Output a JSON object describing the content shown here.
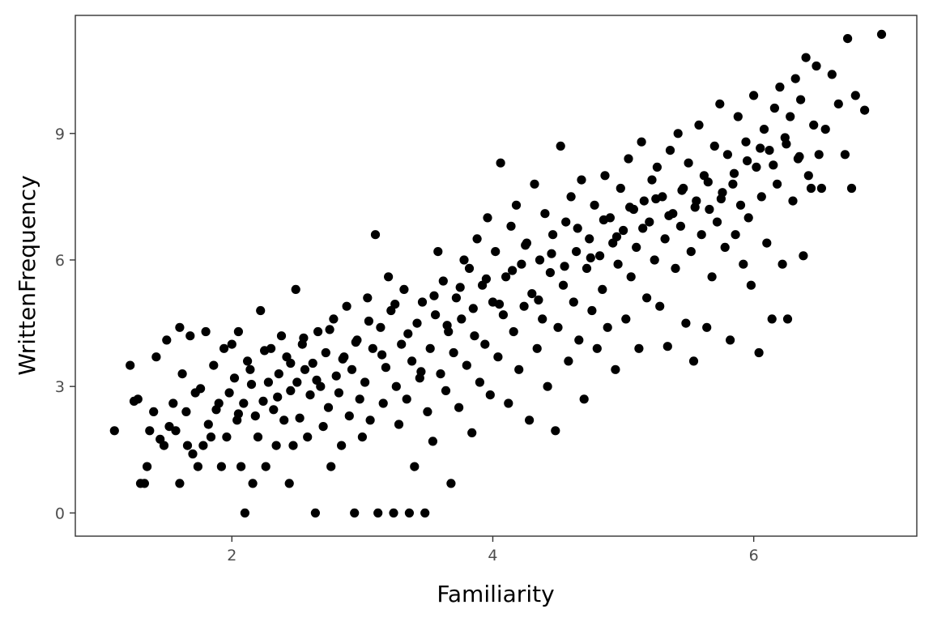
{
  "chart_data": {
    "type": "scatter",
    "title": "",
    "xlabel": "Familiarity",
    "ylabel": "WrittenFrequency",
    "xlim": [
      0.8,
      7.25
    ],
    "ylim": [
      -0.55,
      11.8
    ],
    "x_ticks": [
      2,
      4,
      6
    ],
    "x_tick_labels": [
      "2",
      "4",
      "6"
    ],
    "y_ticks": [
      0,
      3,
      6,
      9
    ],
    "y_tick_labels": [
      "0",
      "3",
      "6",
      "9"
    ],
    "grid": false,
    "legend": "none",
    "point_color": "#000000",
    "points": [
      [
        1.1,
        1.95
      ],
      [
        1.22,
        3.5
      ],
      [
        1.25,
        2.65
      ],
      [
        1.28,
        2.7
      ],
      [
        1.3,
        0.7
      ],
      [
        1.33,
        0.7
      ],
      [
        1.35,
        1.1
      ],
      [
        1.37,
        1.95
      ],
      [
        1.4,
        2.4
      ],
      [
        1.42,
        3.7
      ],
      [
        1.45,
        1.75
      ],
      [
        1.48,
        1.6
      ],
      [
        1.5,
        4.1
      ],
      [
        1.52,
        2.05
      ],
      [
        1.55,
        2.6
      ],
      [
        1.57,
        1.95
      ],
      [
        1.6,
        4.4
      ],
      [
        1.6,
        0.7
      ],
      [
        1.62,
        3.3
      ],
      [
        1.65,
        2.4
      ],
      [
        1.66,
        1.6
      ],
      [
        1.68,
        4.2
      ],
      [
        1.7,
        1.4
      ],
      [
        1.72,
        2.85
      ],
      [
        1.74,
        1.1
      ],
      [
        1.76,
        2.95
      ],
      [
        1.78,
        1.6
      ],
      [
        1.8,
        4.3
      ],
      [
        1.82,
        2.1
      ],
      [
        1.84,
        1.8
      ],
      [
        1.86,
        3.5
      ],
      [
        1.88,
        2.45
      ],
      [
        1.9,
        2.6
      ],
      [
        1.92,
        1.1
      ],
      [
        1.94,
        3.9
      ],
      [
        1.96,
        1.8
      ],
      [
        1.98,
        2.85
      ],
      [
        2.0,
        4.0
      ],
      [
        2.02,
        3.2
      ],
      [
        2.04,
        2.2
      ],
      [
        2.05,
        4.3
      ],
      [
        2.07,
        1.1
      ],
      [
        2.09,
        2.6
      ],
      [
        2.1,
        0.0
      ],
      [
        2.12,
        3.6
      ],
      [
        2.14,
        3.4
      ],
      [
        2.16,
        0.7
      ],
      [
        2.18,
        2.3
      ],
      [
        2.2,
        1.8
      ],
      [
        2.22,
        4.8
      ],
      [
        2.24,
        2.65
      ],
      [
        2.26,
        1.1
      ],
      [
        2.28,
        3.1
      ],
      [
        2.3,
        3.9
      ],
      [
        2.32,
        2.45
      ],
      [
        2.34,
        1.6
      ],
      [
        2.36,
        3.3
      ],
      [
        2.38,
        4.2
      ],
      [
        2.4,
        2.2
      ],
      [
        2.42,
        3.7
      ],
      [
        2.44,
        0.7
      ],
      [
        2.45,
        2.9
      ],
      [
        2.47,
        1.6
      ],
      [
        2.49,
        5.3
      ],
      [
        2.5,
        3.1
      ],
      [
        2.52,
        2.25
      ],
      [
        2.54,
        4.0
      ],
      [
        2.56,
        3.4
      ],
      [
        2.58,
        1.8
      ],
      [
        2.6,
        2.8
      ],
      [
        2.62,
        3.55
      ],
      [
        2.64,
        0.0
      ],
      [
        2.66,
        4.3
      ],
      [
        2.68,
        3.0
      ],
      [
        2.7,
        2.05
      ],
      [
        2.72,
        3.8
      ],
      [
        2.74,
        2.5
      ],
      [
        2.76,
        1.1
      ],
      [
        2.78,
        4.6
      ],
      [
        2.8,
        3.25
      ],
      [
        2.82,
        2.85
      ],
      [
        2.84,
        1.6
      ],
      [
        2.86,
        3.7
      ],
      [
        2.88,
        4.9
      ],
      [
        2.9,
        2.3
      ],
      [
        2.92,
        3.4
      ],
      [
        2.94,
        0.0
      ],
      [
        2.96,
        4.1
      ],
      [
        2.98,
        2.7
      ],
      [
        3.0,
        1.8
      ],
      [
        3.02,
        3.1
      ],
      [
        3.04,
        5.1
      ],
      [
        3.06,
        2.2
      ],
      [
        3.08,
        3.9
      ],
      [
        3.1,
        6.6
      ],
      [
        3.12,
        0.0
      ],
      [
        3.14,
        4.4
      ],
      [
        3.16,
        2.6
      ],
      [
        3.18,
        3.45
      ],
      [
        3.2,
        5.6
      ],
      [
        3.22,
        4.8
      ],
      [
        3.24,
        0.0
      ],
      [
        3.26,
        3.0
      ],
      [
        3.28,
        2.1
      ],
      [
        3.3,
        4.0
      ],
      [
        3.32,
        5.3
      ],
      [
        3.34,
        2.7
      ],
      [
        3.36,
        0.0
      ],
      [
        3.38,
        3.6
      ],
      [
        3.4,
        1.1
      ],
      [
        3.42,
        4.5
      ],
      [
        3.44,
        3.2
      ],
      [
        3.46,
        5.0
      ],
      [
        3.48,
        0.0
      ],
      [
        3.5,
        2.4
      ],
      [
        3.52,
        3.9
      ],
      [
        3.54,
        1.7
      ],
      [
        3.56,
        4.7
      ],
      [
        3.58,
        6.2
      ],
      [
        3.6,
        3.3
      ],
      [
        3.62,
        5.5
      ],
      [
        3.64,
        2.9
      ],
      [
        3.66,
        4.3
      ],
      [
        3.68,
        0.7
      ],
      [
        3.7,
        3.8
      ],
      [
        3.72,
        5.1
      ],
      [
        3.74,
        2.5
      ],
      [
        3.76,
        4.6
      ],
      [
        3.78,
        6.0
      ],
      [
        3.8,
        3.5
      ],
      [
        3.82,
        5.8
      ],
      [
        3.84,
        1.9
      ],
      [
        3.86,
        4.2
      ],
      [
        3.88,
        6.5
      ],
      [
        3.9,
        3.1
      ],
      [
        3.92,
        5.4
      ],
      [
        3.94,
        4.0
      ],
      [
        3.96,
        7.0
      ],
      [
        3.98,
        2.8
      ],
      [
        4.0,
        5.0
      ],
      [
        4.02,
        6.2
      ],
      [
        4.04,
        3.7
      ],
      [
        4.06,
        8.3
      ],
      [
        4.08,
        4.7
      ],
      [
        4.1,
        5.6
      ],
      [
        4.12,
        2.6
      ],
      [
        4.14,
        6.8
      ],
      [
        4.16,
        4.3
      ],
      [
        4.18,
        7.3
      ],
      [
        4.2,
        3.4
      ],
      [
        4.22,
        5.9
      ],
      [
        4.24,
        4.9
      ],
      [
        4.26,
        6.4
      ],
      [
        4.28,
        2.2
      ],
      [
        4.3,
        5.2
      ],
      [
        4.32,
        7.8
      ],
      [
        4.34,
        3.9
      ],
      [
        4.36,
        6.0
      ],
      [
        4.38,
        4.6
      ],
      [
        4.4,
        7.1
      ],
      [
        4.42,
        3.0
      ],
      [
        4.44,
        5.7
      ],
      [
        4.46,
        6.6
      ],
      [
        4.48,
        1.95
      ],
      [
        4.5,
        4.4
      ],
      [
        4.52,
        8.7
      ],
      [
        4.54,
        5.4
      ],
      [
        4.56,
        6.9
      ],
      [
        4.58,
        3.6
      ],
      [
        4.6,
        7.5
      ],
      [
        4.62,
        5.0
      ],
      [
        4.64,
        6.2
      ],
      [
        4.66,
        4.1
      ],
      [
        4.68,
        7.9
      ],
      [
        4.7,
        2.7
      ],
      [
        4.72,
        5.8
      ],
      [
        4.74,
        6.5
      ],
      [
        4.76,
        4.8
      ],
      [
        4.78,
        7.3
      ],
      [
        4.8,
        3.9
      ],
      [
        4.82,
        6.1
      ],
      [
        4.84,
        5.3
      ],
      [
        4.86,
        8.0
      ],
      [
        4.88,
        4.4
      ],
      [
        4.9,
        7.0
      ],
      [
        4.92,
        6.4
      ],
      [
        4.94,
        3.4
      ],
      [
        4.96,
        5.9
      ],
      [
        4.98,
        7.7
      ],
      [
        5.0,
        6.7
      ],
      [
        5.02,
        4.6
      ],
      [
        5.04,
        8.4
      ],
      [
        5.06,
        5.6
      ],
      [
        5.08,
        7.2
      ],
      [
        5.1,
        6.3
      ],
      [
        5.12,
        3.9
      ],
      [
        5.14,
        8.8
      ],
      [
        5.16,
        7.4
      ],
      [
        5.18,
        5.1
      ],
      [
        5.2,
        6.9
      ],
      [
        5.22,
        7.9
      ],
      [
        5.24,
        6.0
      ],
      [
        5.26,
        8.2
      ],
      [
        5.28,
        4.9
      ],
      [
        5.3,
        7.5
      ],
      [
        5.32,
        6.5
      ],
      [
        5.34,
        3.95
      ],
      [
        5.36,
        8.6
      ],
      [
        5.38,
        7.1
      ],
      [
        5.4,
        5.8
      ],
      [
        5.42,
        9.0
      ],
      [
        5.44,
        6.8
      ],
      [
        5.46,
        7.7
      ],
      [
        5.48,
        4.5
      ],
      [
        5.5,
        8.3
      ],
      [
        5.52,
        6.2
      ],
      [
        5.54,
        3.6
      ],
      [
        5.56,
        7.4
      ],
      [
        5.58,
        9.2
      ],
      [
        5.6,
        6.6
      ],
      [
        5.62,
        8.0
      ],
      [
        5.64,
        4.4
      ],
      [
        5.66,
        7.2
      ],
      [
        5.68,
        5.6
      ],
      [
        5.7,
        8.7
      ],
      [
        5.72,
        6.9
      ],
      [
        5.74,
        9.7
      ],
      [
        5.76,
        7.6
      ],
      [
        5.78,
        6.3
      ],
      [
        5.8,
        8.5
      ],
      [
        5.82,
        4.1
      ],
      [
        5.84,
        7.8
      ],
      [
        5.86,
        6.6
      ],
      [
        5.88,
        9.4
      ],
      [
        5.9,
        7.3
      ],
      [
        5.92,
        5.9
      ],
      [
        5.94,
        8.8
      ],
      [
        5.96,
        7.0
      ],
      [
        5.98,
        5.4
      ],
      [
        6.0,
        9.9
      ],
      [
        6.02,
        8.2
      ],
      [
        6.04,
        3.8
      ],
      [
        6.06,
        7.5
      ],
      [
        6.08,
        9.1
      ],
      [
        6.1,
        6.4
      ],
      [
        6.12,
        8.6
      ],
      [
        6.14,
        4.6
      ],
      [
        6.16,
        9.6
      ],
      [
        6.18,
        7.8
      ],
      [
        6.2,
        10.1
      ],
      [
        6.22,
        5.9
      ],
      [
        6.24,
        8.9
      ],
      [
        6.26,
        4.6
      ],
      [
        6.28,
        9.4
      ],
      [
        6.3,
        7.4
      ],
      [
        6.32,
        10.3
      ],
      [
        6.34,
        8.4
      ],
      [
        6.36,
        9.8
      ],
      [
        6.38,
        6.1
      ],
      [
        6.4,
        10.8
      ],
      [
        6.42,
        8.0
      ],
      [
        6.44,
        7.7
      ],
      [
        6.46,
        9.2
      ],
      [
        6.48,
        10.6
      ],
      [
        6.5,
        8.5
      ],
      [
        6.52,
        7.7
      ],
      [
        6.55,
        9.1
      ],
      [
        6.6,
        10.4
      ],
      [
        6.65,
        9.7
      ],
      [
        6.7,
        8.5
      ],
      [
        6.72,
        11.25
      ],
      [
        6.75,
        7.7
      ],
      [
        6.78,
        9.9
      ],
      [
        6.85,
        9.55
      ],
      [
        6.98,
        11.35
      ],
      [
        2.05,
        2.35
      ],
      [
        2.15,
        3.05
      ],
      [
        2.25,
        3.85
      ],
      [
        2.35,
        2.75
      ],
      [
        2.45,
        3.55
      ],
      [
        2.55,
        4.15
      ],
      [
        2.65,
        3.15
      ],
      [
        2.75,
        4.35
      ],
      [
        2.85,
        3.65
      ],
      [
        2.95,
        4.05
      ],
      [
        3.05,
        4.55
      ],
      [
        3.15,
        3.75
      ],
      [
        3.25,
        4.95
      ],
      [
        3.35,
        4.25
      ],
      [
        3.45,
        3.35
      ],
      [
        3.55,
        5.15
      ],
      [
        3.65,
        4.45
      ],
      [
        3.75,
        5.35
      ],
      [
        3.85,
        4.85
      ],
      [
        3.95,
        5.55
      ],
      [
        4.05,
        4.95
      ],
      [
        4.15,
        5.75
      ],
      [
        4.25,
        6.35
      ],
      [
        4.35,
        5.05
      ],
      [
        4.45,
        6.15
      ],
      [
        4.55,
        5.85
      ],
      [
        4.65,
        6.75
      ],
      [
        4.75,
        6.05
      ],
      [
        4.85,
        6.95
      ],
      [
        4.95,
        6.55
      ],
      [
        5.05,
        7.25
      ],
      [
        5.15,
        6.75
      ],
      [
        5.25,
        7.45
      ],
      [
        5.35,
        7.05
      ],
      [
        5.45,
        7.65
      ],
      [
        5.55,
        7.25
      ],
      [
        5.65,
        7.85
      ],
      [
        5.75,
        7.45
      ],
      [
        5.85,
        8.05
      ],
      [
        5.95,
        8.35
      ],
      [
        6.05,
        8.65
      ],
      [
        6.15,
        8.25
      ],
      [
        6.25,
        8.75
      ],
      [
        6.35,
        8.45
      ]
    ]
  }
}
